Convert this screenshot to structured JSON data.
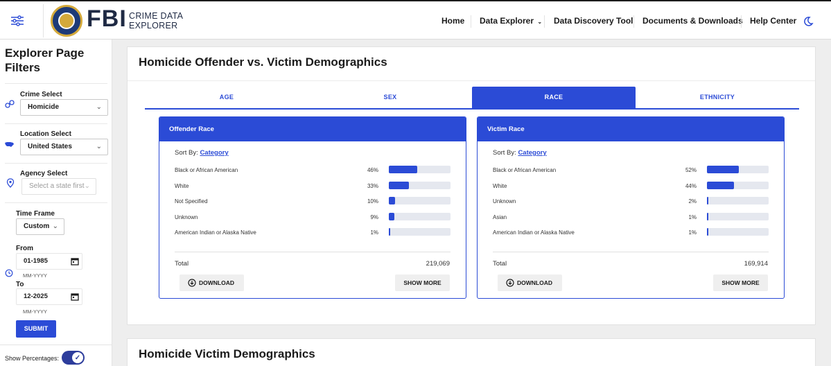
{
  "header": {
    "brand_short": "FBI",
    "brand_line1": "CRIME DATA",
    "brand_line2": "EXPLORER",
    "nav": [
      {
        "label": "Home"
      },
      {
        "label": "Data Explorer"
      },
      {
        "label": "Data Discovery Tool"
      },
      {
        "label": "Documents & Downloads"
      },
      {
        "label": "Help Center"
      }
    ],
    "icons": {
      "menu": "sliders-icon",
      "theme": "moon-icon",
      "logo": "fbi-seal"
    }
  },
  "sidebar": {
    "title": "Explorer Page Filters",
    "crime_label": "Crime Select",
    "crime_value": "Homicide",
    "location_label": "Location Select",
    "location_value": "United States",
    "agency_label": "Agency Select",
    "agency_placeholder": "Select a state first",
    "timeframe_label": "Time Frame",
    "timeframe_value": "Custom",
    "from_label": "From",
    "from_value": "01-1985",
    "from_hint": "MM-YYYY",
    "to_label": "To",
    "to_value": "12-2025",
    "to_hint": "MM-YYYY",
    "submit_label": "SUBMIT",
    "show_percentages_label": "Show Percentages:",
    "show_percentages_on": true
  },
  "main": {
    "card1_title": "Homicide Offender vs. Victim Demographics",
    "tabs": [
      {
        "label": "AGE",
        "active": false
      },
      {
        "label": "SEX",
        "active": false
      },
      {
        "label": "RACE",
        "active": true
      },
      {
        "label": "ETHNICITY",
        "active": false
      }
    ],
    "offender": {
      "title": "Offender Race",
      "sort_by_label": "Sort By:",
      "sort_by_value": "Category",
      "rows": [
        {
          "label": "Black or African American",
          "pct": "46%",
          "value": 46
        },
        {
          "label": "White",
          "pct": "33%",
          "value": 33
        },
        {
          "label": "Not Specified",
          "pct": "10%",
          "value": 10
        },
        {
          "label": "Unknown",
          "pct": "9%",
          "value": 9
        },
        {
          "label": "American Indian or Alaska Native",
          "pct": "1%",
          "value": 1
        }
      ],
      "total_label": "Total",
      "total_value": "219,069",
      "download_label": "DOWNLOAD",
      "show_more_label": "SHOW MORE"
    },
    "victim": {
      "title": "Victim Race",
      "sort_by_label": "Sort By:",
      "sort_by_value": "Category",
      "rows": [
        {
          "label": "Black or African American",
          "pct": "52%",
          "value": 52
        },
        {
          "label": "White",
          "pct": "44%",
          "value": 44
        },
        {
          "label": "Unknown",
          "pct": "2%",
          "value": 2
        },
        {
          "label": "Asian",
          "pct": "1%",
          "value": 1
        },
        {
          "label": "American Indian or Alaska Native",
          "pct": "1%",
          "value": 1
        }
      ],
      "total_label": "Total",
      "total_value": "169,914",
      "download_label": "DOWNLOAD",
      "show_more_label": "SHOW MORE"
    },
    "card2_title": "Homicide Victim Demographics"
  },
  "colors": {
    "accent": "#2b4bd6",
    "brand_dark": "#1f2a44",
    "toggle": "#2d3d9c",
    "bar_track": "#e5e8ef",
    "page_bg": "#eeeeee"
  }
}
